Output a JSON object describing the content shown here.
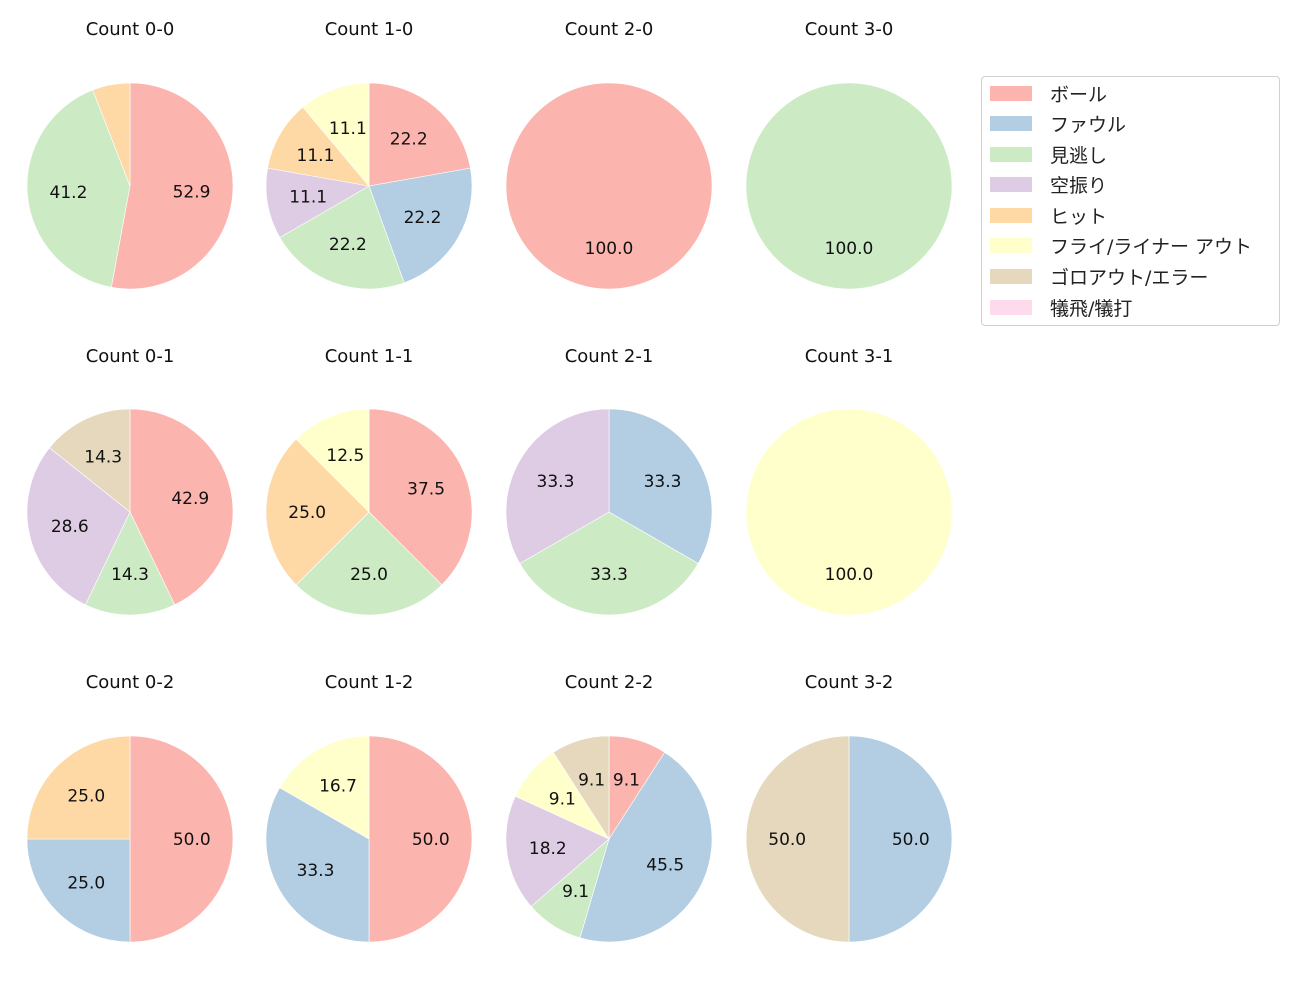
{
  "chart_data": {
    "type": "pie",
    "figure_layout": {
      "rows": 3,
      "cols": 4,
      "startangle": 90,
      "direction": "clockwise",
      "label_format": "%.1f"
    },
    "legend": {
      "position": "upper right",
      "entries": [
        {
          "label": "ボール",
          "color": "#fbb4ae"
        },
        {
          "label": "ファウル",
          "color": "#b3cde3"
        },
        {
          "label": "見逃し",
          "color": "#ccebc5"
        },
        {
          "label": "空振り",
          "color": "#decbe4"
        },
        {
          "label": "ヒット",
          "color": "#fed9a6"
        },
        {
          "label": "フライ/ライナー アウト",
          "color": "#ffffcc"
        },
        {
          "label": "ゴロアウト/エラー",
          "color": "#e5d8bd"
        },
        {
          "label": "犠飛/犠打",
          "color": "#fddaec"
        }
      ]
    },
    "charts": [
      {
        "title": "Count 0-0",
        "row": 0,
        "col": 0,
        "slices": [
          {
            "category": "ボール",
            "value": 52.9
          },
          {
            "category": "見逃し",
            "value": 41.2
          },
          {
            "category": "ヒット",
            "value": 5.9,
            "label_hidden": true
          }
        ]
      },
      {
        "title": "Count 1-0",
        "row": 0,
        "col": 1,
        "slices": [
          {
            "category": "ボール",
            "value": 22.2
          },
          {
            "category": "ファウル",
            "value": 22.2
          },
          {
            "category": "見逃し",
            "value": 22.2
          },
          {
            "category": "空振り",
            "value": 11.1
          },
          {
            "category": "ヒット",
            "value": 11.1
          },
          {
            "category": "フライ/ライナー アウト",
            "value": 11.1
          }
        ]
      },
      {
        "title": "Count 2-0",
        "row": 0,
        "col": 2,
        "slices": [
          {
            "category": "ボール",
            "value": 100.0
          }
        ]
      },
      {
        "title": "Count 3-0",
        "row": 0,
        "col": 3,
        "slices": [
          {
            "category": "見逃し",
            "value": 100.0
          }
        ]
      },
      {
        "title": "Count 0-1",
        "row": 1,
        "col": 0,
        "slices": [
          {
            "category": "ボール",
            "value": 42.9
          },
          {
            "category": "見逃し",
            "value": 14.3
          },
          {
            "category": "空振り",
            "value": 28.6
          },
          {
            "category": "ゴロアウト/エラー",
            "value": 14.3
          }
        ]
      },
      {
        "title": "Count 1-1",
        "row": 1,
        "col": 1,
        "slices": [
          {
            "category": "ボール",
            "value": 37.5
          },
          {
            "category": "見逃し",
            "value": 25.0
          },
          {
            "category": "ヒット",
            "value": 25.0
          },
          {
            "category": "フライ/ライナー アウト",
            "value": 12.5
          }
        ]
      },
      {
        "title": "Count 2-1",
        "row": 1,
        "col": 2,
        "slices": [
          {
            "category": "ファウル",
            "value": 33.3
          },
          {
            "category": "見逃し",
            "value": 33.3
          },
          {
            "category": "空振り",
            "value": 33.3
          }
        ]
      },
      {
        "title": "Count 3-1",
        "row": 1,
        "col": 3,
        "slices": [
          {
            "category": "フライ/ライナー アウト",
            "value": 100.0
          }
        ]
      },
      {
        "title": "Count 0-2",
        "row": 2,
        "col": 0,
        "slices": [
          {
            "category": "ボール",
            "value": 50.0
          },
          {
            "category": "ファウル",
            "value": 25.0
          },
          {
            "category": "ヒット",
            "value": 25.0
          }
        ]
      },
      {
        "title": "Count 1-2",
        "row": 2,
        "col": 1,
        "slices": [
          {
            "category": "ボール",
            "value": 50.0
          },
          {
            "category": "ファウル",
            "value": 33.3
          },
          {
            "category": "フライ/ライナー アウト",
            "value": 16.7
          }
        ]
      },
      {
        "title": "Count 2-2",
        "row": 2,
        "col": 2,
        "slices": [
          {
            "category": "ボール",
            "value": 9.1
          },
          {
            "category": "ファウル",
            "value": 45.5
          },
          {
            "category": "見逃し",
            "value": 9.1
          },
          {
            "category": "空振り",
            "value": 18.2
          },
          {
            "category": "フライ/ライナー アウト",
            "value": 9.1
          },
          {
            "category": "ゴロアウト/エラー",
            "value": 9.1
          }
        ]
      },
      {
        "title": "Count 3-2",
        "row": 2,
        "col": 3,
        "slices": [
          {
            "category": "ファウル",
            "value": 50.0
          },
          {
            "category": "ゴロアウト/エラー",
            "value": 50.0
          }
        ]
      }
    ]
  }
}
